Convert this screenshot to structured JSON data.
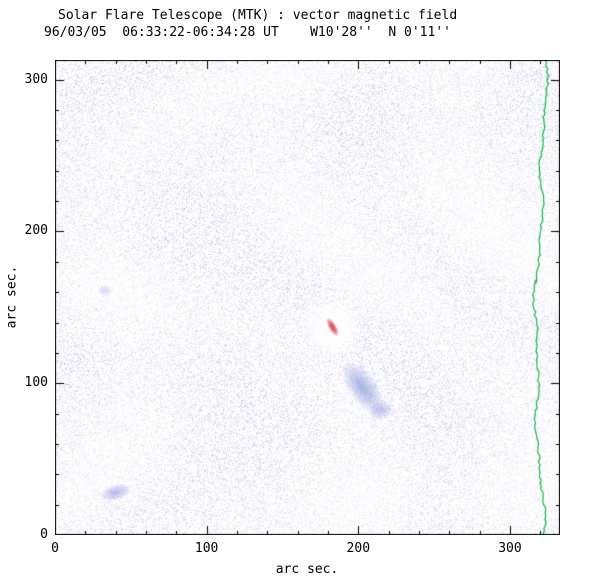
{
  "figure": {
    "title": "Solar Flare Telescope (MTK) : vector magnetic field",
    "subtitle": "96/03/05  06:33:22-06:34:28 UT    W10'28''  N 0'11''",
    "xlabel": "arc sec.",
    "ylabel": "arc sec."
  },
  "chart_data": {
    "type": "heatmap",
    "title": "Solar Flare Telescope (MTK) : vector magnetic field",
    "subtitle": "96/03/05 06:33:22-06:34:28 UT W10'28'' N 0'11''",
    "xlabel": "arc sec.",
    "ylabel": "arc sec.",
    "xlim": [
      0,
      333
    ],
    "ylim": [
      0,
      313
    ],
    "xticks": [
      0,
      100,
      200,
      300
    ],
    "yticks": [
      0,
      100,
      200,
      300
    ],
    "minor_tick_interval": 20,
    "grid": false,
    "background_noise": {
      "description": "low-amplitude magnetogram speckle noise over full field",
      "color": "#9aa0e8",
      "pink_speck_color": "#e8b2c4"
    },
    "features": [
      {
        "name": "positive-polarity-spot",
        "x": 183,
        "y": 137,
        "rx": 2.5,
        "ry": 6.5,
        "angle": -30,
        "color": "#d23535",
        "alpha": 0.85,
        "halo": true
      },
      {
        "name": "negative-polarity-region",
        "x": 203,
        "y": 97,
        "rx": 9,
        "ry": 20,
        "angle": -35,
        "color": "#6b74d6",
        "alpha": 0.34
      },
      {
        "name": "negative-polarity-tail",
        "x": 215,
        "y": 82,
        "rx": 8,
        "ry": 6,
        "angle": -20,
        "color": "#7880da",
        "alpha": 0.26
      },
      {
        "name": "small-negative-patch",
        "x": 40,
        "y": 28,
        "rx": 10,
        "ry": 5,
        "angle": -15,
        "color": "#7880da",
        "alpha": 0.32
      },
      {
        "name": "faint-negative-patch",
        "x": 33,
        "y": 161,
        "rx": 5,
        "ry": 4,
        "angle": 0,
        "color": "#8c93e2",
        "alpha": 0.18
      },
      {
        "name": "limb-red-speck",
        "x": 317,
        "y": 167,
        "rx": 1.5,
        "ry": 1.5,
        "angle": 0,
        "color": "#cc4444",
        "alpha": 0.6
      }
    ],
    "limb_line": {
      "color": "#11b93e",
      "x_mean": 320,
      "description": "wavy solar limb contour near right edge, full height of plot"
    }
  }
}
